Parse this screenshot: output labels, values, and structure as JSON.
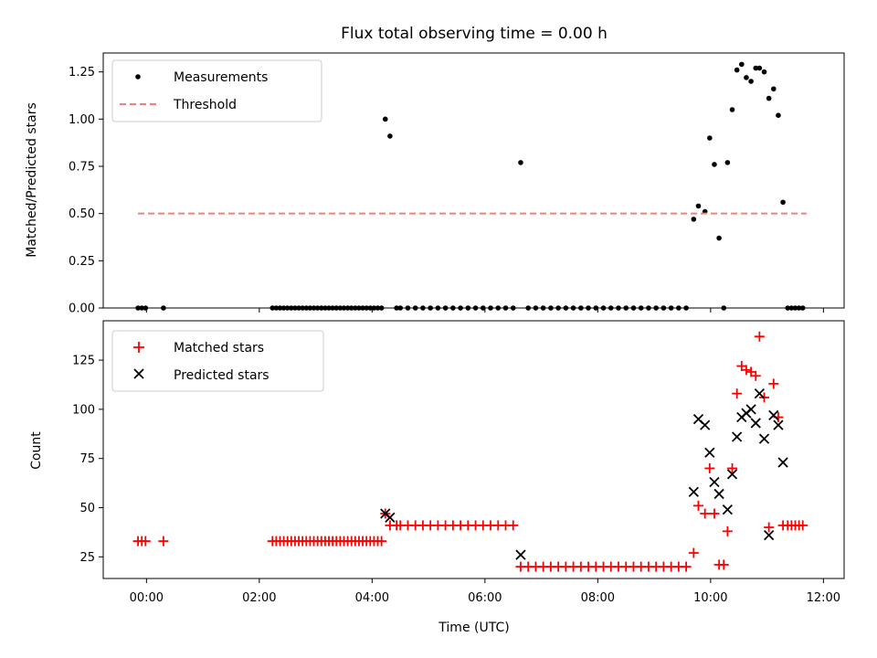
{
  "chart_data": [
    {
      "type": "scatter",
      "title": "Flux total observing time = 0.00 h",
      "xlabel": "",
      "ylabel": "Matched/Predicted stars",
      "xlim": [
        "23:14",
        "12:22"
      ],
      "ylim": [
        0.0,
        1.35
      ],
      "yticks": [
        "0.00",
        "0.25",
        "0.50",
        "0.75",
        "1.00",
        "1.25"
      ],
      "legend_position": "top-left",
      "series": [
        {
          "name": "Measurements",
          "marker": "dot",
          "color": "#000000",
          "points": [
            [
              "23:51",
              0
            ],
            [
              "23:55",
              0
            ],
            [
              "23:59",
              0
            ],
            [
              "00:18",
              0
            ],
            [
              "02:14",
              0
            ],
            [
              "02:18",
              0
            ],
            [
              "02:22",
              0
            ],
            [
              "02:26",
              0
            ],
            [
              "02:30",
              0
            ],
            [
              "02:34",
              0
            ],
            [
              "02:38",
              0
            ],
            [
              "02:42",
              0
            ],
            [
              "02:46",
              0
            ],
            [
              "02:50",
              0
            ],
            [
              "02:54",
              0
            ],
            [
              "02:58",
              0
            ],
            [
              "03:02",
              0
            ],
            [
              "03:06",
              0
            ],
            [
              "03:10",
              0
            ],
            [
              "03:14",
              0
            ],
            [
              "03:18",
              0
            ],
            [
              "03:22",
              0
            ],
            [
              "03:26",
              0
            ],
            [
              "03:30",
              0
            ],
            [
              "03:34",
              0
            ],
            [
              "03:38",
              0
            ],
            [
              "03:42",
              0
            ],
            [
              "03:46",
              0
            ],
            [
              "03:50",
              0
            ],
            [
              "03:54",
              0
            ],
            [
              "03:58",
              0
            ],
            [
              "04:02",
              0
            ],
            [
              "04:06",
              0
            ],
            [
              "04:10",
              0
            ],
            [
              "04:14",
              1.0
            ],
            [
              "04:19",
              0.91
            ],
            [
              "04:26",
              0
            ],
            [
              "04:30",
              0
            ],
            [
              "04:38",
              0
            ],
            [
              "04:46",
              0
            ],
            [
              "04:54",
              0
            ],
            [
              "05:02",
              0
            ],
            [
              "05:10",
              0
            ],
            [
              "05:18",
              0
            ],
            [
              "05:26",
              0
            ],
            [
              "05:34",
              0
            ],
            [
              "05:42",
              0
            ],
            [
              "05:50",
              0
            ],
            [
              "05:58",
              0
            ],
            [
              "06:06",
              0
            ],
            [
              "06:14",
              0
            ],
            [
              "06:22",
              0
            ],
            [
              "06:30",
              0
            ],
            [
              "06:38",
              0.77
            ],
            [
              "06:46",
              0
            ],
            [
              "06:54",
              0
            ],
            [
              "07:02",
              0
            ],
            [
              "07:10",
              0
            ],
            [
              "07:18",
              0
            ],
            [
              "07:26",
              0
            ],
            [
              "07:34",
              0
            ],
            [
              "07:42",
              0
            ],
            [
              "07:50",
              0
            ],
            [
              "07:58",
              0
            ],
            [
              "08:06",
              0
            ],
            [
              "08:14",
              0
            ],
            [
              "08:22",
              0
            ],
            [
              "08:30",
              0
            ],
            [
              "08:38",
              0
            ],
            [
              "08:46",
              0
            ],
            [
              "08:54",
              0
            ],
            [
              "09:02",
              0
            ],
            [
              "09:10",
              0
            ],
            [
              "09:18",
              0
            ],
            [
              "09:26",
              0
            ],
            [
              "09:34",
              0
            ],
            [
              "09:42",
              0.47
            ],
            [
              "09:47",
              0.54
            ],
            [
              "09:54",
              0.51
            ],
            [
              "09:59",
              0.9
            ],
            [
              "10:04",
              0.76
            ],
            [
              "10:09",
              0.37
            ],
            [
              "10:14",
              0
            ],
            [
              "10:18",
              0.77
            ],
            [
              "10:23",
              1.05
            ],
            [
              "10:28",
              1.26
            ],
            [
              "10:33",
              1.29
            ],
            [
              "10:38",
              1.22
            ],
            [
              "10:43",
              1.2
            ],
            [
              "10:48",
              1.27
            ],
            [
              "10:52",
              1.27
            ],
            [
              "10:57",
              1.25
            ],
            [
              "11:02",
              1.11
            ],
            [
              "11:07",
              1.16
            ],
            [
              "11:12",
              1.02
            ],
            [
              "11:17",
              0.56
            ],
            [
              "11:22",
              0
            ],
            [
              "11:26",
              0
            ],
            [
              "11:30",
              0
            ],
            [
              "11:34",
              0
            ],
            [
              "11:38",
              0
            ]
          ]
        },
        {
          "name": "Threshold",
          "line_style": "dashed",
          "color": "#f08080",
          "points": [
            [
              "23:51",
              0.5
            ],
            [
              "11:42",
              0.5
            ]
          ]
        }
      ]
    },
    {
      "type": "scatter",
      "title": "",
      "xlabel": "Time (UTC)",
      "ylabel": "Count",
      "xlim": [
        "23:14",
        "12:22"
      ],
      "ylim": [
        14,
        145
      ],
      "xticks": [
        "00:00",
        "02:00",
        "04:00",
        "06:00",
        "08:00",
        "10:00",
        "12:00"
      ],
      "yticks": [
        "25",
        "50",
        "75",
        "100",
        "125"
      ],
      "legend_position": "top-left",
      "series": [
        {
          "name": "Matched stars",
          "marker": "plus",
          "color": "#ff0000",
          "points": [
            [
              "23:51",
              33
            ],
            [
              "23:55",
              33
            ],
            [
              "23:59",
              33
            ],
            [
              "00:18",
              33
            ],
            [
              "02:14",
              33
            ],
            [
              "02:18",
              33
            ],
            [
              "02:22",
              33
            ],
            [
              "02:26",
              33
            ],
            [
              "02:30",
              33
            ],
            [
              "02:34",
              33
            ],
            [
              "02:38",
              33
            ],
            [
              "02:42",
              33
            ],
            [
              "02:46",
              33
            ],
            [
              "02:50",
              33
            ],
            [
              "02:54",
              33
            ],
            [
              "02:58",
              33
            ],
            [
              "03:02",
              33
            ],
            [
              "03:06",
              33
            ],
            [
              "03:10",
              33
            ],
            [
              "03:14",
              33
            ],
            [
              "03:18",
              33
            ],
            [
              "03:22",
              33
            ],
            [
              "03:26",
              33
            ],
            [
              "03:30",
              33
            ],
            [
              "03:34",
              33
            ],
            [
              "03:38",
              33
            ],
            [
              "03:42",
              33
            ],
            [
              "03:46",
              33
            ],
            [
              "03:50",
              33
            ],
            [
              "03:54",
              33
            ],
            [
              "03:58",
              33
            ],
            [
              "04:02",
              33
            ],
            [
              "04:06",
              33
            ],
            [
              "04:10",
              33
            ],
            [
              "04:14",
              47
            ],
            [
              "04:19",
              41
            ],
            [
              "04:26",
              41
            ],
            [
              "04:30",
              41
            ],
            [
              "04:38",
              41
            ],
            [
              "04:46",
              41
            ],
            [
              "04:54",
              41
            ],
            [
              "05:02",
              41
            ],
            [
              "05:10",
              41
            ],
            [
              "05:18",
              41
            ],
            [
              "05:26",
              41
            ],
            [
              "05:34",
              41
            ],
            [
              "05:42",
              41
            ],
            [
              "05:50",
              41
            ],
            [
              "05:58",
              41
            ],
            [
              "06:06",
              41
            ],
            [
              "06:14",
              41
            ],
            [
              "06:22",
              41
            ],
            [
              "06:30",
              41
            ],
            [
              "06:38",
              20
            ],
            [
              "06:46",
              20
            ],
            [
              "06:54",
              20
            ],
            [
              "07:02",
              20
            ],
            [
              "07:10",
              20
            ],
            [
              "07:18",
              20
            ],
            [
              "07:26",
              20
            ],
            [
              "07:34",
              20
            ],
            [
              "07:42",
              20
            ],
            [
              "07:50",
              20
            ],
            [
              "07:58",
              20
            ],
            [
              "08:06",
              20
            ],
            [
              "08:14",
              20
            ],
            [
              "08:22",
              20
            ],
            [
              "08:30",
              20
            ],
            [
              "08:38",
              20
            ],
            [
              "08:46",
              20
            ],
            [
              "08:54",
              20
            ],
            [
              "09:02",
              20
            ],
            [
              "09:10",
              20
            ],
            [
              "09:18",
              20
            ],
            [
              "09:26",
              20
            ],
            [
              "09:34",
              20
            ],
            [
              "09:42",
              27
            ],
            [
              "09:47",
              51
            ],
            [
              "09:54",
              47
            ],
            [
              "09:59",
              70
            ],
            [
              "10:04",
              47
            ],
            [
              "10:09",
              21
            ],
            [
              "10:14",
              21
            ],
            [
              "10:18",
              38
            ],
            [
              "10:23",
              70
            ],
            [
              "10:28",
              108
            ],
            [
              "10:33",
              122
            ],
            [
              "10:38",
              120
            ],
            [
              "10:43",
              119
            ],
            [
              "10:48",
              117
            ],
            [
              "10:52",
              137
            ],
            [
              "10:57",
              106
            ],
            [
              "11:02",
              40
            ],
            [
              "11:07",
              113
            ],
            [
              "11:12",
              96
            ],
            [
              "11:17",
              41
            ],
            [
              "11:22",
              41
            ],
            [
              "11:26",
              41
            ],
            [
              "11:30",
              41
            ],
            [
              "11:34",
              41
            ],
            [
              "11:38",
              41
            ]
          ]
        },
        {
          "name": "Predicted stars",
          "marker": "x",
          "color": "#000000",
          "points": [
            [
              "04:14",
              47
            ],
            [
              "04:19",
              45
            ],
            [
              "06:38",
              26
            ],
            [
              "09:42",
              58
            ],
            [
              "09:47",
              95
            ],
            [
              "09:54",
              92
            ],
            [
              "09:59",
              78
            ],
            [
              "10:04",
              63
            ],
            [
              "10:09",
              57
            ],
            [
              "10:18",
              49
            ],
            [
              "10:23",
              67
            ],
            [
              "10:28",
              86
            ],
            [
              "10:33",
              96
            ],
            [
              "10:38",
              98
            ],
            [
              "10:43",
              100
            ],
            [
              "10:48",
              93
            ],
            [
              "10:52",
              108
            ],
            [
              "10:57",
              85
            ],
            [
              "11:02",
              36
            ],
            [
              "11:07",
              97
            ],
            [
              "11:12",
              92
            ],
            [
              "11:17",
              73
            ]
          ]
        }
      ]
    }
  ]
}
